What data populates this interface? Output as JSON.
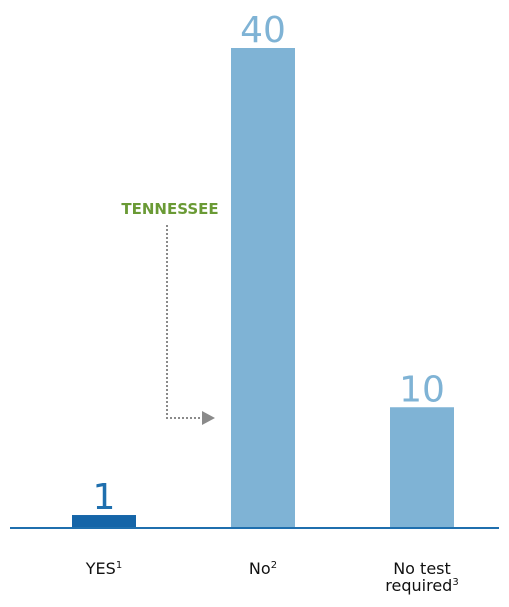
{
  "chart_data": {
    "type": "bar",
    "categories": [
      "YES",
      "No",
      "No test required"
    ],
    "category_footnotes": [
      "1",
      "2",
      "3"
    ],
    "values": [
      1,
      40,
      10
    ],
    "value_labels": [
      "1",
      "40",
      "10"
    ],
    "bar_colors": [
      "#1565a8",
      "#7fb3d5",
      "#7fb3d5"
    ],
    "label_colors": [
      "#1f6fae",
      "#7fb3d5",
      "#7fb3d5"
    ],
    "baseline_color": "#1f6fae",
    "title": "",
    "xlabel": "",
    "ylabel": "",
    "ylim": [
      0,
      40
    ],
    "grid": false,
    "annotation": {
      "text": "TENNESSEE",
      "target_category": "No",
      "color": "#6a9a35",
      "arrow_color": "#8a8a8a"
    }
  }
}
